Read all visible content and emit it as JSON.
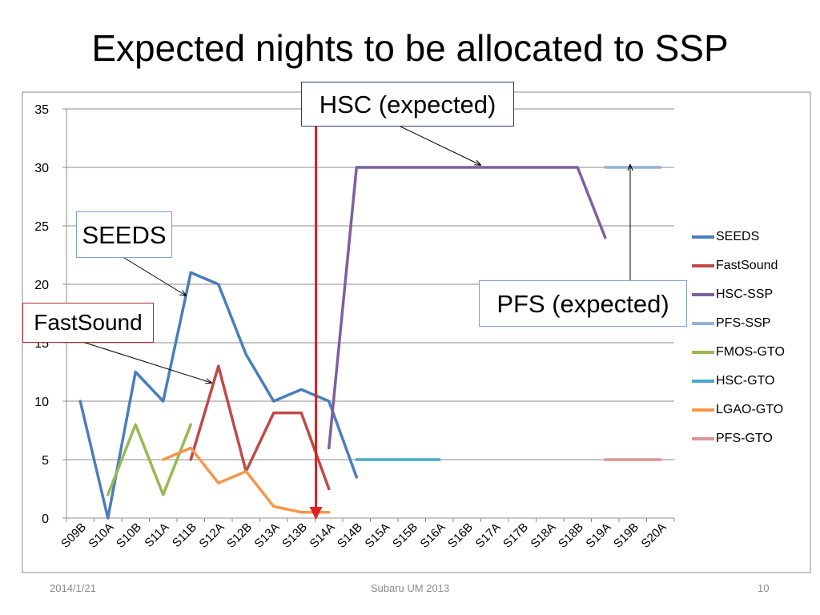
{
  "slide": {
    "title": "Expected nights to be allocated to SSP",
    "footer_date": "2014/1/21",
    "footer_center": "Subaru UM 2013",
    "page_number": "10"
  },
  "callouts": {
    "hsc": "HSC (expected)",
    "seeds": "SEEDS",
    "fastsound": "FastSound",
    "pfs": "PFS (expected)"
  },
  "chart_data": {
    "type": "line",
    "title": "",
    "xlabel": "",
    "ylabel": "",
    "ylim": [
      0,
      35
    ],
    "yticks": [
      0,
      5,
      10,
      15,
      20,
      25,
      30,
      35
    ],
    "grid": true,
    "legend_position": "right",
    "categories": [
      "S09B",
      "S10A",
      "S10B",
      "S11A",
      "S11B",
      "S12A",
      "S12B",
      "S13A",
      "S13B",
      "S14A",
      "S14B",
      "S15A",
      "S15B",
      "S16A",
      "S16B",
      "S17A",
      "S17B",
      "S18A",
      "S18B",
      "S19A",
      "S19B",
      "S20A"
    ],
    "series": [
      {
        "name": "SEEDS",
        "color": "#4a7ebb",
        "values": [
          10,
          0,
          12.5,
          10,
          21,
          20,
          14,
          10,
          11,
          10,
          3.5,
          null,
          null,
          null,
          null,
          null,
          null,
          null,
          null,
          null,
          null,
          null
        ]
      },
      {
        "name": "FastSound",
        "color": "#be4b48",
        "values": [
          null,
          null,
          null,
          null,
          5,
          13,
          4,
          9,
          9,
          2.5,
          null,
          null,
          null,
          null,
          null,
          null,
          null,
          null,
          null,
          null,
          null,
          null
        ]
      },
      {
        "name": "HSC-SSP",
        "color": "#7d60a0",
        "values": [
          null,
          null,
          null,
          null,
          null,
          null,
          null,
          null,
          null,
          6,
          30,
          30,
          30,
          30,
          30,
          30,
          30,
          30,
          30,
          24,
          null,
          null
        ]
      },
      {
        "name": "PFS-SSP",
        "color": "#95b3d7",
        "values": [
          null,
          null,
          null,
          null,
          null,
          null,
          null,
          null,
          null,
          null,
          null,
          null,
          null,
          null,
          null,
          null,
          null,
          null,
          null,
          30,
          30,
          30
        ]
      },
      {
        "name": "FMOS-GTO",
        "color": "#98b954",
        "values": [
          null,
          2,
          8,
          2,
          8,
          null,
          null,
          null,
          null,
          null,
          null,
          null,
          null,
          null,
          null,
          null,
          null,
          null,
          null,
          null,
          null,
          null
        ]
      },
      {
        "name": "HSC-GTO",
        "color": "#46aac5",
        "values": [
          null,
          null,
          null,
          null,
          null,
          null,
          null,
          null,
          null,
          null,
          5,
          5,
          5,
          5,
          null,
          null,
          null,
          null,
          null,
          null,
          null,
          null
        ]
      },
      {
        "name": "LGAO-GTO",
        "color": "#f79646",
        "values": [
          null,
          null,
          null,
          5,
          6,
          3,
          4,
          1,
          0.5,
          0.5,
          null,
          null,
          null,
          null,
          null,
          null,
          null,
          null,
          null,
          null,
          null,
          null
        ]
      },
      {
        "name": "PFS-GTO",
        "color": "#d99694",
        "values": [
          null,
          null,
          null,
          null,
          null,
          null,
          null,
          null,
          null,
          null,
          null,
          null,
          null,
          null,
          null,
          null,
          null,
          null,
          null,
          5,
          5,
          5
        ]
      }
    ],
    "marker": {
      "category_between": [
        "S13B",
        "S14A"
      ],
      "color": "#e02020"
    }
  }
}
